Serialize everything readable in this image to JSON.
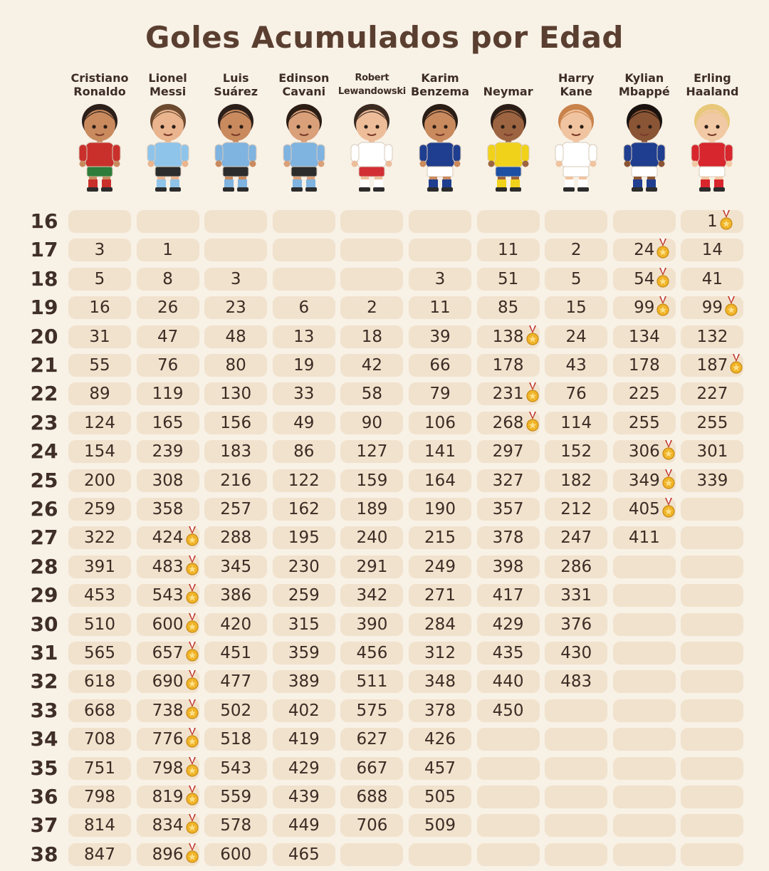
{
  "chart_data": {
    "type": "table",
    "title": "Goles Acumulados por Edad",
    "players": [
      {
        "name": "Cristiano\nRonaldo",
        "kit": "#c9302c",
        "shorts": "#2e7d3a",
        "hair": "#2c1f1a",
        "skin": "#c98a5e"
      },
      {
        "name": "Lionel\nMessi",
        "kit": "#8fc4ea",
        "shorts": "#2c2c2c",
        "hair": "#6b4a30",
        "skin": "#e9b48e"
      },
      {
        "name": "Luis\nSuárez",
        "kit": "#7fb3e0",
        "shorts": "#2c2c2c",
        "hair": "#2c1f1a",
        "skin": "#c98a5e"
      },
      {
        "name": "Edinson\nCavani",
        "kit": "#7fb3e0",
        "shorts": "#2c2c2c",
        "hair": "#2b1c14",
        "skin": "#d9a07a"
      },
      {
        "name": "Robert\nLewandowski",
        "kit": "#ffffff",
        "shorts": "#d22f35",
        "hair": "#3a2a20",
        "skin": "#edbd9a"
      },
      {
        "name": "Karim\nBenzema",
        "kit": "#1f3e8f",
        "shorts": "#ffffff",
        "hair": "#2a1d16",
        "skin": "#c98a5e"
      },
      {
        "name": "Neymar",
        "kit": "#f1d21a",
        "shorts": "#1d4fa3",
        "hair": "#2a1d16",
        "skin": "#9c6440"
      },
      {
        "name": "Harry\nKane",
        "kit": "#ffffff",
        "shorts": "#ffffff",
        "hair": "#c9824a",
        "skin": "#f0c4a0"
      },
      {
        "name": "Kylian\nMbappé",
        "kit": "#1f3e8f",
        "shorts": "#ffffff",
        "hair": "#1a120e",
        "skin": "#8a5535"
      },
      {
        "name": "Erling\nHaaland",
        "kit": "#d7262e",
        "shorts": "#ffffff",
        "hair": "#e8c87a",
        "skin": "#f2c9a5"
      }
    ],
    "ages": [
      16,
      17,
      18,
      19,
      20,
      21,
      22,
      23,
      24,
      25,
      26,
      27,
      28,
      29,
      30,
      31,
      32,
      33,
      34,
      35,
      36,
      37,
      38
    ],
    "goals": [
      [
        null,
        null,
        null,
        null,
        null,
        null,
        null,
        null,
        null,
        1
      ],
      [
        3,
        1,
        null,
        null,
        null,
        null,
        11,
        2,
        24,
        14
      ],
      [
        5,
        8,
        3,
        null,
        null,
        3,
        51,
        5,
        54,
        41
      ],
      [
        16,
        26,
        23,
        6,
        2,
        11,
        85,
        15,
        99,
        99
      ],
      [
        31,
        47,
        48,
        13,
        18,
        39,
        138,
        24,
        134,
        132
      ],
      [
        55,
        76,
        80,
        19,
        42,
        66,
        178,
        43,
        178,
        187
      ],
      [
        89,
        119,
        130,
        33,
        58,
        79,
        231,
        76,
        225,
        227
      ],
      [
        124,
        165,
        156,
        49,
        90,
        106,
        268,
        114,
        255,
        255
      ],
      [
        154,
        239,
        183,
        86,
        127,
        141,
        297,
        152,
        306,
        301
      ],
      [
        200,
        308,
        216,
        122,
        159,
        164,
        327,
        182,
        349,
        339
      ],
      [
        259,
        358,
        257,
        162,
        189,
        190,
        357,
        212,
        405,
        null
      ],
      [
        322,
        424,
        288,
        195,
        240,
        215,
        378,
        247,
        411,
        null
      ],
      [
        391,
        483,
        345,
        230,
        291,
        249,
        398,
        286,
        null,
        null
      ],
      [
        453,
        543,
        386,
        259,
        342,
        271,
        417,
        331,
        null,
        null
      ],
      [
        510,
        600,
        420,
        315,
        390,
        284,
        429,
        376,
        null,
        null
      ],
      [
        565,
        657,
        451,
        359,
        456,
        312,
        435,
        430,
        null,
        null
      ],
      [
        618,
        690,
        477,
        389,
        511,
        348,
        440,
        483,
        null,
        null
      ],
      [
        668,
        738,
        502,
        402,
        575,
        378,
        450,
        null,
        null,
        null
      ],
      [
        708,
        776,
        518,
        419,
        627,
        426,
        null,
        null,
        null,
        null
      ],
      [
        751,
        798,
        543,
        429,
        667,
        457,
        null,
        null,
        null,
        null
      ],
      [
        798,
        819,
        559,
        439,
        688,
        505,
        null,
        null,
        null,
        null
      ],
      [
        814,
        834,
        578,
        449,
        706,
        509,
        null,
        null,
        null,
        null
      ],
      [
        847,
        896,
        600,
        465,
        null,
        null,
        null,
        null,
        null,
        null
      ]
    ],
    "medals": [
      [
        null,
        null,
        null,
        null,
        null,
        null,
        null,
        null,
        null,
        true
      ],
      [
        null,
        null,
        null,
        null,
        null,
        null,
        null,
        null,
        true,
        null
      ],
      [
        null,
        null,
        null,
        null,
        null,
        null,
        null,
        null,
        true,
        null
      ],
      [
        null,
        null,
        null,
        null,
        null,
        null,
        null,
        null,
        true,
        true
      ],
      [
        null,
        null,
        null,
        null,
        null,
        null,
        true,
        null,
        null,
        null
      ],
      [
        null,
        null,
        null,
        null,
        null,
        null,
        null,
        null,
        null,
        true
      ],
      [
        null,
        null,
        null,
        null,
        null,
        null,
        true,
        null,
        null,
        null
      ],
      [
        null,
        null,
        null,
        null,
        null,
        null,
        true,
        null,
        null,
        null
      ],
      [
        null,
        null,
        null,
        null,
        null,
        null,
        null,
        null,
        true,
        null
      ],
      [
        null,
        null,
        null,
        null,
        null,
        null,
        null,
        null,
        true,
        null
      ],
      [
        null,
        null,
        null,
        null,
        null,
        null,
        null,
        null,
        true,
        null
      ],
      [
        null,
        true,
        null,
        null,
        null,
        null,
        null,
        null,
        null,
        null
      ],
      [
        null,
        true,
        null,
        null,
        null,
        null,
        null,
        null,
        null,
        null
      ],
      [
        null,
        true,
        null,
        null,
        null,
        null,
        null,
        null,
        null,
        null
      ],
      [
        null,
        true,
        null,
        null,
        null,
        null,
        null,
        null,
        null,
        null
      ],
      [
        null,
        true,
        null,
        null,
        null,
        null,
        null,
        null,
        null,
        null
      ],
      [
        null,
        true,
        null,
        null,
        null,
        null,
        null,
        null,
        null,
        null
      ],
      [
        null,
        true,
        null,
        null,
        null,
        null,
        null,
        null,
        null,
        null
      ],
      [
        null,
        true,
        null,
        null,
        null,
        null,
        null,
        null,
        null,
        null
      ],
      [
        null,
        true,
        null,
        null,
        null,
        null,
        null,
        null,
        null,
        null
      ],
      [
        null,
        true,
        null,
        null,
        null,
        null,
        null,
        null,
        null,
        null
      ],
      [
        null,
        true,
        null,
        null,
        null,
        null,
        null,
        null,
        null,
        null
      ],
      [
        null,
        true,
        null,
        null,
        null,
        null,
        null,
        null,
        null,
        null
      ]
    ],
    "colors": {
      "cell": "#f1e2cd",
      "background": "#f8f1e6",
      "medal": "#f0b429",
      "ribbon": "#c0392b"
    }
  }
}
